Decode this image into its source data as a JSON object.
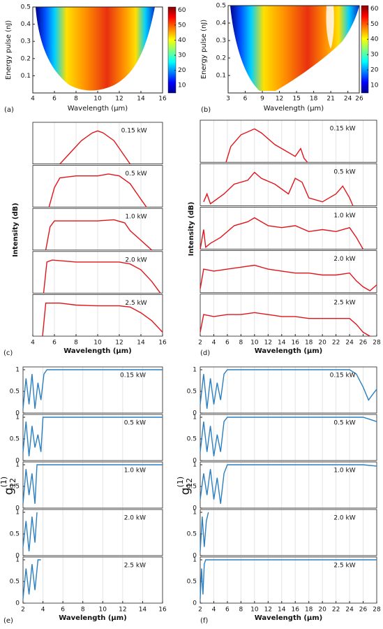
{
  "chart_data": [
    {
      "type": "heatmap",
      "panel_label": "(a)",
      "xlabel": "Wavelength (µm)",
      "ylabel": "Energy pulse (nJ)",
      "xlim": [
        4,
        16
      ],
      "xticks": [
        4,
        6,
        8,
        10,
        12,
        14,
        16
      ],
      "ylim": [
        0,
        0.5
      ],
      "yticks": [
        0.1,
        0.2,
        0.3,
        0.4,
        0.5
      ],
      "colorbar": {
        "lim": [
          5,
          62
        ],
        "ticks": [
          10,
          20,
          30,
          40,
          50,
          60
        ]
      }
    },
    {
      "type": "heatmap",
      "panel_label": "(b)",
      "xlabel": "Wavelength (µm)",
      "ylabel": "Energy pulse (nJ)",
      "xlim": [
        3,
        26
      ],
      "xticks": [
        3,
        6,
        9,
        12,
        15,
        18,
        21,
        24,
        26
      ],
      "ylim": [
        0,
        0.5
      ],
      "yticks": [
        0.1,
        0.2,
        0.3,
        0.4,
        0.5
      ],
      "colorbar": {
        "lim": [
          5,
          62
        ],
        "ticks": [
          10,
          20,
          30,
          40,
          50,
          60
        ]
      }
    },
    {
      "type": "line",
      "panel_label": "(c)",
      "xlabel": "Wavelength (µm)",
      "ylabel": "Intensity (dB)",
      "xlim": [
        4,
        16
      ],
      "xticks": [
        4,
        6,
        8,
        10,
        12,
        14,
        16
      ],
      "ylim": [
        0,
        1
      ],
      "grid": true,
      "series": [
        {
          "name": "0.15 kW",
          "color": "#e0141b",
          "x": [
            6.5,
            7.5,
            8.5,
            9.5,
            10,
            10.5,
            11.5,
            12.5,
            13
          ],
          "values": [
            0,
            0.3,
            0.6,
            0.8,
            0.85,
            0.8,
            0.6,
            0.2,
            0
          ]
        },
        {
          "name": "0.5 kW",
          "color": "#e0141b",
          "x": [
            5.5,
            6,
            6.5,
            8,
            10,
            11,
            12,
            13,
            14,
            14.5
          ],
          "values": [
            0,
            0.5,
            0.75,
            0.8,
            0.8,
            0.85,
            0.8,
            0.6,
            0.2,
            0
          ]
        },
        {
          "name": "1.0 kW",
          "color": "#e0141b",
          "x": [
            5.2,
            5.6,
            6,
            8,
            10,
            11.5,
            12.5,
            13,
            14,
            15
          ],
          "values": [
            0,
            0.6,
            0.75,
            0.75,
            0.75,
            0.78,
            0.7,
            0.5,
            0.25,
            0
          ]
        },
        {
          "name": "2.0 kW",
          "color": "#e0141b",
          "x": [
            5,
            5.3,
            5.8,
            8,
            10,
            12,
            13,
            14,
            15,
            15.8
          ],
          "values": [
            0,
            0.8,
            0.85,
            0.8,
            0.8,
            0.8,
            0.75,
            0.6,
            0.3,
            0
          ]
        },
        {
          "name": "2.5 kW",
          "color": "#e0141b",
          "x": [
            4.9,
            5.2,
            6.5,
            8,
            10,
            12,
            13,
            14,
            15,
            16
          ],
          "values": [
            0,
            0.85,
            0.85,
            0.8,
            0.78,
            0.78,
            0.75,
            0.6,
            0.4,
            0.1
          ]
        }
      ]
    },
    {
      "type": "line",
      "panel_label": "(d)",
      "xlabel": "Wavelength (µm)",
      "ylabel": "Intensity (dB)",
      "xlim": [
        2,
        28
      ],
      "xticks": [
        2,
        4,
        6,
        8,
        10,
        12,
        14,
        16,
        18,
        20,
        22,
        24,
        26,
        28
      ],
      "ylim": [
        0,
        1
      ],
      "grid": true,
      "series": [
        {
          "name": "0.15 kW",
          "color": "#e0141b",
          "x": [
            5.8,
            6.5,
            8,
            10,
            11,
            13,
            16,
            16.8,
            17.3,
            17.8
          ],
          "values": [
            0,
            0.4,
            0.7,
            0.85,
            0.75,
            0.45,
            0.15,
            0.35,
            0.1,
            0
          ]
        },
        {
          "name": "0.5 kW",
          "color": "#e0141b",
          "x": [
            2.5,
            3,
            3.5,
            5.5,
            7,
            9,
            10,
            11,
            13,
            15,
            16,
            17,
            18,
            20,
            22,
            23,
            24,
            24.5
          ],
          "values": [
            0.1,
            0.3,
            0.05,
            0.3,
            0.55,
            0.65,
            0.85,
            0.7,
            0.55,
            0.3,
            0.7,
            0.6,
            0.2,
            0.1,
            0.3,
            0.5,
            0.2,
            0
          ]
        },
        {
          "name": "1.0 kW",
          "color": "#e0141b",
          "x": [
            2,
            2.5,
            2.8,
            3.5,
            5,
            7,
            9,
            10,
            12,
            14,
            16,
            18,
            20,
            22,
            24,
            25,
            26
          ],
          "values": [
            0,
            0.5,
            0.05,
            0.15,
            0.3,
            0.6,
            0.7,
            0.8,
            0.6,
            0.55,
            0.6,
            0.45,
            0.5,
            0.45,
            0.55,
            0.3,
            0
          ]
        },
        {
          "name": "2.0 kW",
          "color": "#e0141b",
          "x": [
            2,
            2.5,
            4,
            6,
            8,
            10,
            12,
            14,
            16,
            18,
            20,
            22,
            24,
            25,
            26,
            27,
            28
          ],
          "values": [
            0.1,
            0.6,
            0.55,
            0.6,
            0.65,
            0.7,
            0.6,
            0.55,
            0.5,
            0.5,
            0.45,
            0.45,
            0.5,
            0.3,
            0.15,
            0.05,
            0.2
          ]
        },
        {
          "name": "2.5 kW",
          "color": "#e0141b",
          "x": [
            2,
            2.5,
            4,
            6,
            8,
            10,
            12,
            14,
            16,
            18,
            20,
            22,
            24,
            25,
            26,
            27
          ],
          "values": [
            0.1,
            0.55,
            0.5,
            0.55,
            0.55,
            0.6,
            0.55,
            0.5,
            0.5,
            0.45,
            0.45,
            0.45,
            0.45,
            0.3,
            0.1,
            0
          ]
        }
      ]
    },
    {
      "type": "line",
      "panel_label": "(e)",
      "xlabel": "Wavelength (µm)",
      "ylabel": {
        "base": "g",
        "sup": "(1)",
        "sub": "12"
      },
      "xlim": [
        2,
        16
      ],
      "xticks": [
        2,
        4,
        6,
        8,
        10,
        12,
        14,
        16
      ],
      "ylim": [
        0,
        1
      ],
      "yticks": [
        0,
        0.5,
        1
      ],
      "grid": true,
      "series": [
        {
          "name": "0.15 kW",
          "color": "#2b7fc0",
          "x": [
            2,
            2.3,
            2.6,
            2.9,
            3.2,
            3.5,
            3.8,
            4.1,
            4.4,
            16
          ],
          "values": [
            0.1,
            0.8,
            0.2,
            0.9,
            0.1,
            0.7,
            0.3,
            0.9,
            1,
            1
          ]
        },
        {
          "name": "0.5 kW",
          "color": "#2b7fc0",
          "x": [
            2,
            2.3,
            2.6,
            2.9,
            3.2,
            3.5,
            3.8,
            4,
            16
          ],
          "values": [
            0.2,
            0.9,
            0.1,
            0.8,
            0.3,
            0.6,
            0.2,
            1,
            1
          ]
        },
        {
          "name": "1.0 kW",
          "color": "#2b7fc0",
          "x": [
            2,
            2.3,
            2.6,
            2.9,
            3.2,
            3.4,
            16
          ],
          "values": [
            0.1,
            0.9,
            0.3,
            0.8,
            0.1,
            1,
            1
          ]
        },
        {
          "name": "2.0 kW",
          "color": "#2b7fc0",
          "x": [
            2,
            2.3,
            2.6,
            2.9,
            3.2,
            3.4
          ],
          "values": [
            0.2,
            0.8,
            0.1,
            0.9,
            0.3,
            1
          ]
        },
        {
          "name": "2.5 kW",
          "color": "#2b7fc0",
          "x": [
            2,
            2.3,
            2.6,
            2.9,
            3.2,
            3.5,
            3.8
          ],
          "values": [
            0.1,
            0.8,
            0.2,
            0.9,
            0.3,
            1,
            1
          ]
        }
      ]
    },
    {
      "type": "line",
      "panel_label": "(f)",
      "xlabel": "Wavelength (µm)",
      "ylabel": {
        "base": "g",
        "sup": "(1)",
        "sub": "12"
      },
      "xlim": [
        2,
        28
      ],
      "xticks": [
        2,
        4,
        6,
        8,
        10,
        12,
        14,
        16,
        18,
        20,
        22,
        24,
        26,
        28
      ],
      "ylim": [
        0,
        1
      ],
      "yticks": [
        0,
        0.5,
        1
      ],
      "grid": true,
      "series": [
        {
          "name": "0.15 kW",
          "color": "#2b7fc0",
          "x": [
            2,
            2.5,
            3,
            3.5,
            4,
            4.5,
            5,
            5.5,
            6,
            24,
            25,
            26,
            26.8,
            27.5,
            28
          ],
          "values": [
            0.2,
            0.9,
            0.1,
            0.8,
            0.2,
            0.7,
            0.3,
            0.9,
            1,
            1,
            0.9,
            0.6,
            0.3,
            0.45,
            0.55
          ]
        },
        {
          "name": "0.5 kW",
          "color": "#2b7fc0",
          "x": [
            2,
            2.5,
            3,
            3.5,
            4,
            4.5,
            5,
            5.5,
            6,
            26,
            27,
            28
          ],
          "values": [
            0.2,
            0.9,
            0.2,
            0.8,
            0.1,
            0.6,
            0.2,
            0.9,
            1,
            1,
            0.95,
            0.9
          ]
        },
        {
          "name": "1.0 kW",
          "color": "#2b7fc0",
          "x": [
            2,
            2.5,
            3,
            3.5,
            4,
            4.5,
            5,
            5.5,
            6,
            26,
            28
          ],
          "values": [
            0.2,
            0.8,
            0.3,
            0.9,
            0.2,
            0.7,
            0.1,
            0.8,
            1,
            1,
            0.97
          ]
        },
        {
          "name": "2.0 kW",
          "color": "#2b7fc0",
          "x": [
            2,
            2.3,
            2.6,
            2.9,
            3.2
          ],
          "values": [
            0.1,
            0.9,
            0.2,
            0.8,
            1
          ]
        },
        {
          "name": "2.5 kW",
          "color": "#2b7fc0",
          "x": [
            2,
            2.2,
            2.4,
            2.6,
            2.8,
            28
          ],
          "values": [
            0.1,
            0.8,
            0.2,
            0.9,
            1,
            1
          ]
        }
      ]
    }
  ]
}
